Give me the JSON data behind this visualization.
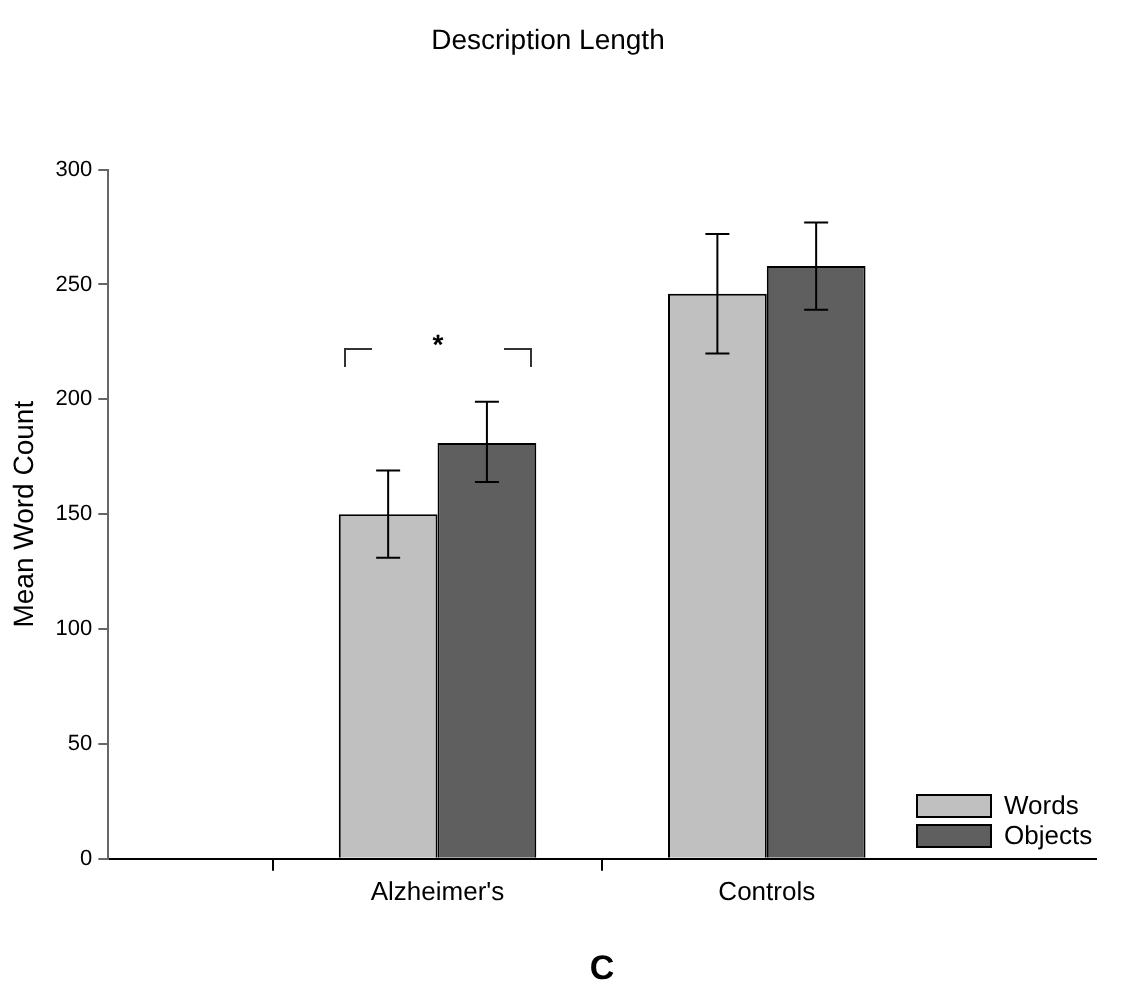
{
  "chart_data": {
    "type": "bar",
    "title": "Description Length",
    "ylabel": "Mean Word Count",
    "categories": [
      null,
      "Alzheimer's",
      "Controls",
      null
    ],
    "series": [
      {
        "name": "Words",
        "color": "#c0c0c0",
        "values": [
          null,
          150,
          246,
          null
        ],
        "errors": [
          null,
          [
            131,
            169
          ],
          [
            220,
            272
          ],
          null
        ]
      },
      {
        "name": "Objects",
        "color": "#5f5f5f",
        "values": [
          null,
          181,
          258,
          null
        ],
        "errors": [
          null,
          [
            164,
            199
          ],
          [
            239,
            277
          ],
          null
        ]
      }
    ],
    "ylim": [
      0,
      300
    ],
    "yticks": [
      0,
      50,
      100,
      150,
      200,
      250,
      300
    ],
    "grid": false,
    "legend": "bottom right",
    "annotations": [
      "*",
      "C"
    ]
  }
}
